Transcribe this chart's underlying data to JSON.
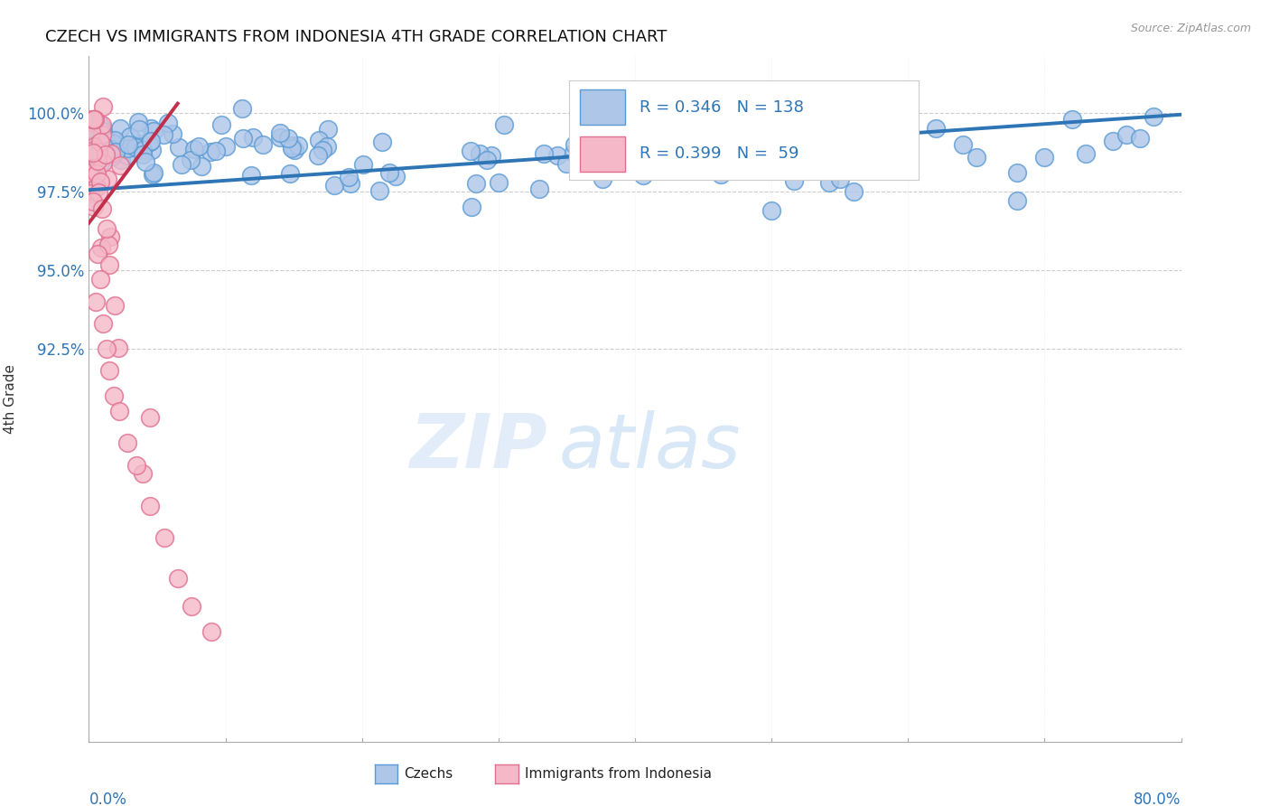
{
  "title": "CZECH VS IMMIGRANTS FROM INDONESIA 4TH GRADE CORRELATION CHART",
  "source": "Source: ZipAtlas.com",
  "ylabel": "4th Grade",
  "xmin": 0.0,
  "xmax": 0.8,
  "ymin": 0.8,
  "ymax": 1.018,
  "ytick_values": [
    0.925,
    0.95,
    0.975,
    1.0
  ],
  "ytick_labels": [
    "92.5%",
    "95.0%",
    "97.5%",
    "100.0%"
  ],
  "blue_color": "#aec6e8",
  "blue_edge": "#5b9bd5",
  "pink_color": "#f4b8c8",
  "pink_edge": "#e07090",
  "trend_blue_color": "#2e75b6",
  "trend_pink_color": "#c0304a",
  "legend_text_color": "#2e75b6",
  "watermark_color1": "#ccddf0",
  "watermark_color2": "#99bbdd"
}
